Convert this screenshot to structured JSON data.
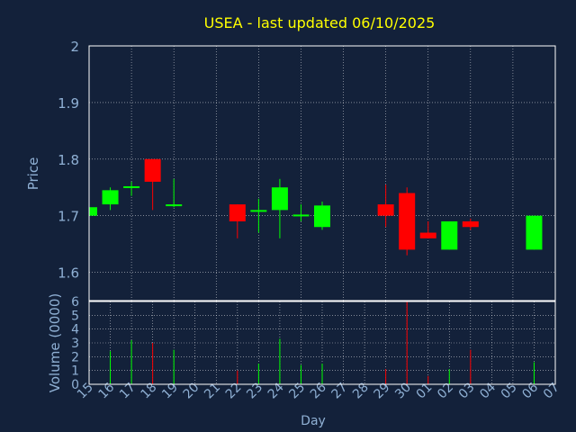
{
  "chart_data": {
    "type": "candlestick",
    "title": "USEA - last updated 06/10/2025",
    "xlabel": "Day",
    "ylabel_price": "Price",
    "ylabel_volume": "Volume (0000)",
    "price_ylim": [
      1.55,
      2.0
    ],
    "price_ticks": [
      "1.6",
      "1.7",
      "1.8",
      "1.9",
      "2"
    ],
    "volume_ylim": [
      0,
      6
    ],
    "volume_ticks": [
      "0",
      "1",
      "2",
      "3",
      "4",
      "5",
      "6"
    ],
    "grid": true,
    "day_labels": [
      "15",
      "16",
      "17",
      "18",
      "19",
      "20",
      "21",
      "22",
      "23",
      "24",
      "25",
      "26",
      "27",
      "28",
      "29",
      "30",
      "01",
      "02",
      "03",
      "04",
      "05",
      "06",
      "07"
    ],
    "candles": [
      {
        "day": "15",
        "open": 1.7,
        "high": 1.715,
        "low": 1.7,
        "close": 1.715
      },
      {
        "day": "16",
        "open": 1.72,
        "high": 1.75,
        "low": 1.71,
        "close": 1.745
      },
      {
        "day": "17",
        "open": 1.75,
        "high": 1.76,
        "low": 1.735,
        "close": 1.752
      },
      {
        "day": "18",
        "open": 1.8,
        "high": 1.8,
        "low": 1.71,
        "close": 1.76
      },
      {
        "day": "19",
        "open": 1.718,
        "high": 1.765,
        "low": 1.715,
        "close": 1.72
      },
      {
        "day": "22",
        "open": 1.72,
        "high": 1.72,
        "low": 1.66,
        "close": 1.69
      },
      {
        "day": "23",
        "open": 1.708,
        "high": 1.73,
        "low": 1.67,
        "close": 1.71
      },
      {
        "day": "24",
        "open": 1.71,
        "high": 1.765,
        "low": 1.66,
        "close": 1.75
      },
      {
        "day": "25",
        "open": 1.7,
        "high": 1.72,
        "low": 1.69,
        "close": 1.702
      },
      {
        "day": "26",
        "open": 1.68,
        "high": 1.725,
        "low": 1.675,
        "close": 1.718
      },
      {
        "day": "29",
        "open": 1.72,
        "high": 1.755,
        "low": 1.68,
        "close": 1.7
      },
      {
        "day": "30",
        "open": 1.74,
        "high": 1.75,
        "low": 1.63,
        "close": 1.64
      },
      {
        "day": "01",
        "open": 1.67,
        "high": 1.69,
        "low": 1.66,
        "close": 1.66
      },
      {
        "day": "02",
        "open": 1.64,
        "high": 1.69,
        "low": 1.64,
        "close": 1.69
      },
      {
        "day": "03",
        "open": 1.69,
        "high": 1.695,
        "low": 1.675,
        "close": 1.68
      },
      {
        "day": "06",
        "open": 1.64,
        "high": 1.7,
        "low": 1.64,
        "close": 1.7
      }
    ],
    "volumes": [
      {
        "day": "16",
        "value": 2.4,
        "up": true
      },
      {
        "day": "17",
        "value": 3.2,
        "up": true
      },
      {
        "day": "18",
        "value": 3.0,
        "up": false
      },
      {
        "day": "19",
        "value": 2.5,
        "up": true
      },
      {
        "day": "22",
        "value": 1.0,
        "up": false
      },
      {
        "day": "23",
        "value": 1.5,
        "up": true
      },
      {
        "day": "24",
        "value": 3.3,
        "up": true
      },
      {
        "day": "25",
        "value": 1.4,
        "up": true
      },
      {
        "day": "26",
        "value": 1.5,
        "up": true
      },
      {
        "day": "29",
        "value": 1.1,
        "up": false
      },
      {
        "day": "30",
        "value": 6.0,
        "up": false
      },
      {
        "day": "01",
        "value": 0.6,
        "up": false
      },
      {
        "day": "02",
        "value": 1.1,
        "up": true
      },
      {
        "day": "03",
        "value": 2.5,
        "up": false
      },
      {
        "day": "06",
        "value": 1.6,
        "up": true
      }
    ],
    "colors": {
      "background": "#13213a",
      "up": "#00ff00",
      "down": "#ff0000",
      "title": "#ffff00",
      "axis_text": "#8fb0d4",
      "frame": "#ffffff",
      "grid": "#ffffff"
    }
  }
}
